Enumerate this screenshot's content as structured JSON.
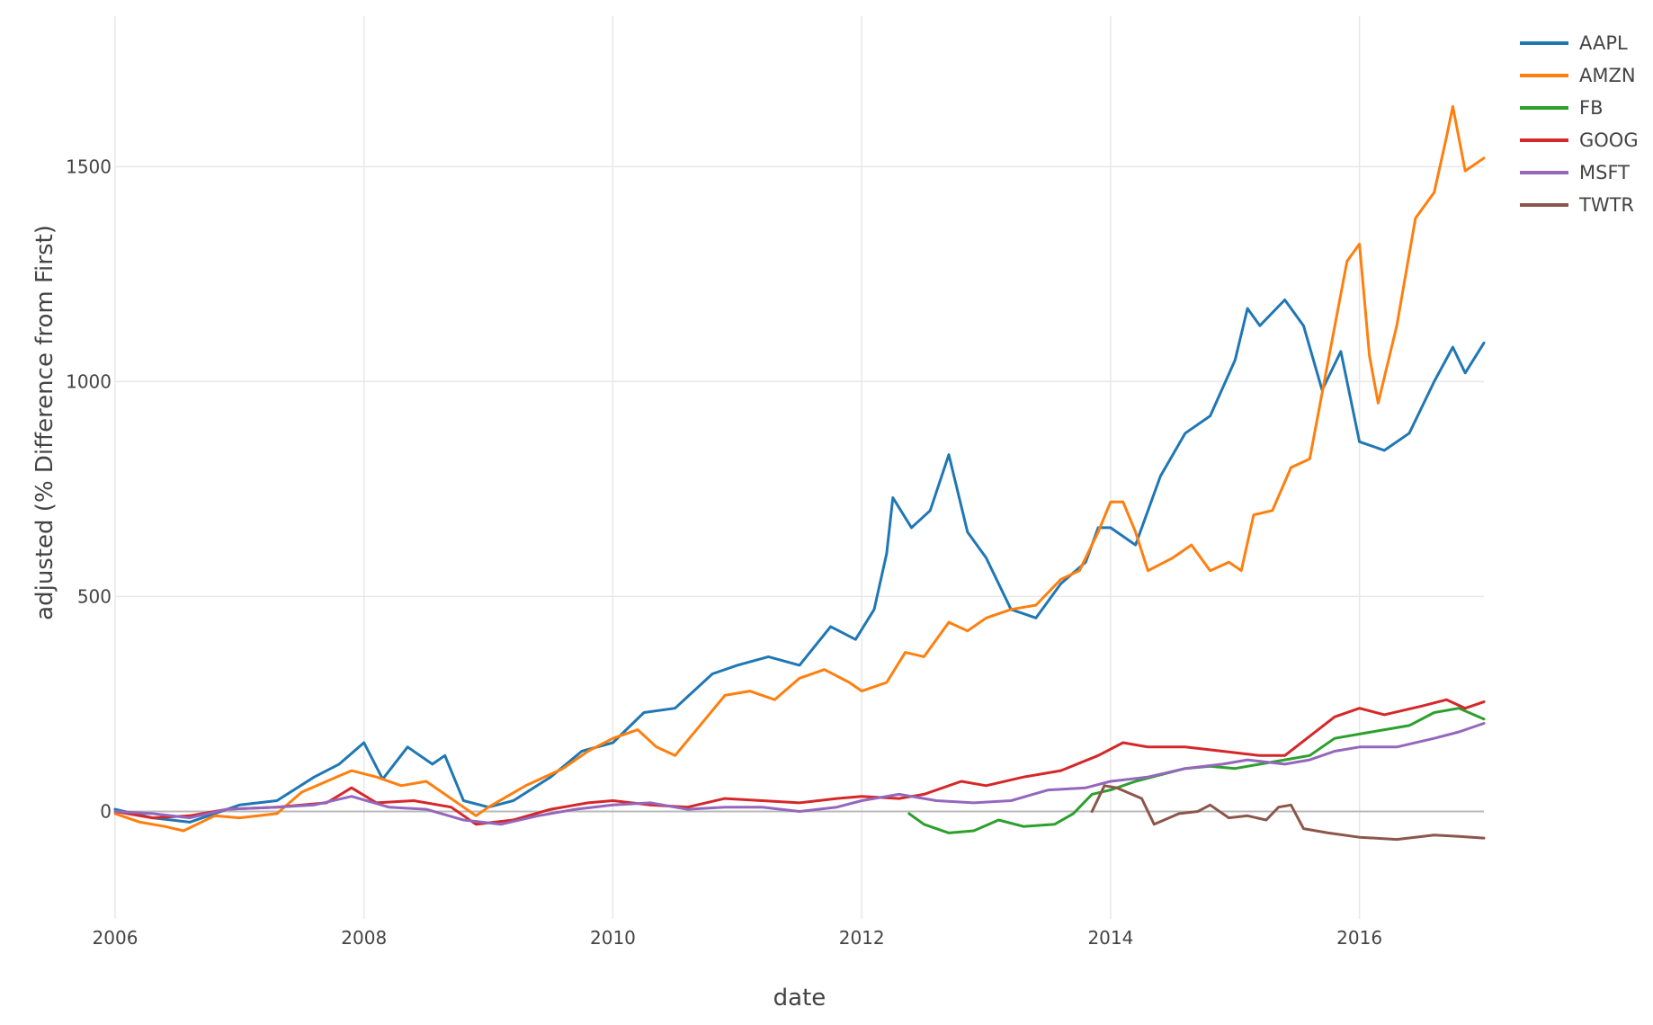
{
  "chart_data": {
    "type": "line",
    "xlabel": "date",
    "ylabel": "adjusted (% Difference from First)",
    "xlim": [
      2006,
      2017
    ],
    "ylim": [
      -250,
      1850
    ],
    "x_ticks": [
      2006,
      2008,
      2010,
      2012,
      2014,
      2016
    ],
    "x_tick_labels": [
      "2006",
      "2008",
      "2010",
      "2012",
      "2014",
      "2016"
    ],
    "y_ticks": [
      0,
      500,
      1000,
      1500
    ],
    "y_tick_labels": [
      "0",
      "500",
      "1000",
      "1500"
    ],
    "grid": true,
    "legend_position": "top-right",
    "series": [
      {
        "name": "AAPL",
        "color": "#1f77b4",
        "points": [
          [
            2006.0,
            5
          ],
          [
            2006.3,
            -15
          ],
          [
            2006.6,
            -25
          ],
          [
            2007.0,
            15
          ],
          [
            2007.3,
            25
          ],
          [
            2007.6,
            80
          ],
          [
            2007.8,
            110
          ],
          [
            2008.0,
            160
          ],
          [
            2008.15,
            75
          ],
          [
            2008.35,
            150
          ],
          [
            2008.55,
            110
          ],
          [
            2008.65,
            130
          ],
          [
            2008.8,
            25
          ],
          [
            2009.0,
            10
          ],
          [
            2009.2,
            25
          ],
          [
            2009.5,
            80
          ],
          [
            2009.75,
            140
          ],
          [
            2010.0,
            160
          ],
          [
            2010.25,
            230
          ],
          [
            2010.5,
            240
          ],
          [
            2010.8,
            320
          ],
          [
            2011.0,
            340
          ],
          [
            2011.25,
            360
          ],
          [
            2011.5,
            340
          ],
          [
            2011.75,
            430
          ],
          [
            2011.95,
            400
          ],
          [
            2012.1,
            470
          ],
          [
            2012.2,
            600
          ],
          [
            2012.25,
            730
          ],
          [
            2012.4,
            660
          ],
          [
            2012.55,
            700
          ],
          [
            2012.7,
            830
          ],
          [
            2012.85,
            650
          ],
          [
            2013.0,
            590
          ],
          [
            2013.2,
            470
          ],
          [
            2013.4,
            450
          ],
          [
            2013.6,
            530
          ],
          [
            2013.8,
            580
          ],
          [
            2013.9,
            660
          ],
          [
            2014.0,
            660
          ],
          [
            2014.2,
            620
          ],
          [
            2014.4,
            780
          ],
          [
            2014.6,
            880
          ],
          [
            2014.8,
            920
          ],
          [
            2015.0,
            1050
          ],
          [
            2015.1,
            1170
          ],
          [
            2015.2,
            1130
          ],
          [
            2015.4,
            1190
          ],
          [
            2015.55,
            1130
          ],
          [
            2015.7,
            980
          ],
          [
            2015.85,
            1070
          ],
          [
            2016.0,
            860
          ],
          [
            2016.2,
            840
          ],
          [
            2016.4,
            880
          ],
          [
            2016.6,
            1000
          ],
          [
            2016.75,
            1080
          ],
          [
            2016.85,
            1020
          ],
          [
            2017.0,
            1090
          ]
        ]
      },
      {
        "name": "AMZN",
        "color": "#ff7f0e",
        "points": [
          [
            2006.0,
            -5
          ],
          [
            2006.2,
            -25
          ],
          [
            2006.4,
            -35
          ],
          [
            2006.55,
            -45
          ],
          [
            2006.8,
            -10
          ],
          [
            2007.0,
            -15
          ],
          [
            2007.3,
            -5
          ],
          [
            2007.5,
            45
          ],
          [
            2007.7,
            70
          ],
          [
            2007.9,
            95
          ],
          [
            2008.1,
            80
          ],
          [
            2008.3,
            60
          ],
          [
            2008.5,
            70
          ],
          [
            2008.7,
            30
          ],
          [
            2008.9,
            -10
          ],
          [
            2009.0,
            10
          ],
          [
            2009.3,
            60
          ],
          [
            2009.6,
            100
          ],
          [
            2009.8,
            140
          ],
          [
            2010.0,
            170
          ],
          [
            2010.2,
            190
          ],
          [
            2010.35,
            150
          ],
          [
            2010.5,
            130
          ],
          [
            2010.7,
            200
          ],
          [
            2010.9,
            270
          ],
          [
            2011.1,
            280
          ],
          [
            2011.3,
            260
          ],
          [
            2011.5,
            310
          ],
          [
            2011.7,
            330
          ],
          [
            2011.9,
            300
          ],
          [
            2012.0,
            280
          ],
          [
            2012.2,
            300
          ],
          [
            2012.35,
            370
          ],
          [
            2012.5,
            360
          ],
          [
            2012.7,
            440
          ],
          [
            2012.85,
            420
          ],
          [
            2013.0,
            450
          ],
          [
            2013.2,
            470
          ],
          [
            2013.4,
            480
          ],
          [
            2013.6,
            540
          ],
          [
            2013.75,
            560
          ],
          [
            2013.9,
            650
          ],
          [
            2014.0,
            720
          ],
          [
            2014.1,
            720
          ],
          [
            2014.2,
            650
          ],
          [
            2014.3,
            560
          ],
          [
            2014.5,
            590
          ],
          [
            2014.65,
            620
          ],
          [
            2014.8,
            560
          ],
          [
            2014.95,
            580
          ],
          [
            2015.05,
            560
          ],
          [
            2015.15,
            690
          ],
          [
            2015.3,
            700
          ],
          [
            2015.45,
            800
          ],
          [
            2015.6,
            820
          ],
          [
            2015.75,
            1050
          ],
          [
            2015.9,
            1280
          ],
          [
            2016.0,
            1320
          ],
          [
            2016.08,
            1060
          ],
          [
            2016.15,
            950
          ],
          [
            2016.3,
            1130
          ],
          [
            2016.45,
            1380
          ],
          [
            2016.6,
            1440
          ],
          [
            2016.7,
            1570
          ],
          [
            2016.75,
            1640
          ],
          [
            2016.85,
            1490
          ],
          [
            2017.0,
            1520
          ]
        ]
      },
      {
        "name": "FB",
        "color": "#2ca02c",
        "points": [
          [
            2012.38,
            -5
          ],
          [
            2012.5,
            -30
          ],
          [
            2012.7,
            -50
          ],
          [
            2012.9,
            -45
          ],
          [
            2013.1,
            -20
          ],
          [
            2013.3,
            -35
          ],
          [
            2013.55,
            -30
          ],
          [
            2013.7,
            -5
          ],
          [
            2013.85,
            40
          ],
          [
            2014.0,
            50
          ],
          [
            2014.2,
            70
          ],
          [
            2014.4,
            85
          ],
          [
            2014.6,
            100
          ],
          [
            2014.8,
            105
          ],
          [
            2015.0,
            100
          ],
          [
            2015.2,
            110
          ],
          [
            2015.4,
            120
          ],
          [
            2015.6,
            130
          ],
          [
            2015.8,
            170
          ],
          [
            2016.0,
            180
          ],
          [
            2016.2,
            190
          ],
          [
            2016.4,
            200
          ],
          [
            2016.6,
            230
          ],
          [
            2016.8,
            240
          ],
          [
            2017.0,
            215
          ]
        ]
      },
      {
        "name": "GOOG",
        "color": "#d62728",
        "points": [
          [
            2006.0,
            0
          ],
          [
            2006.3,
            -15
          ],
          [
            2006.6,
            -10
          ],
          [
            2006.9,
            5
          ],
          [
            2007.3,
            10
          ],
          [
            2007.7,
            20
          ],
          [
            2007.9,
            55
          ],
          [
            2008.1,
            20
          ],
          [
            2008.4,
            25
          ],
          [
            2008.7,
            10
          ],
          [
            2008.9,
            -30
          ],
          [
            2009.2,
            -20
          ],
          [
            2009.5,
            5
          ],
          [
            2009.8,
            20
          ],
          [
            2010.0,
            25
          ],
          [
            2010.3,
            15
          ],
          [
            2010.6,
            10
          ],
          [
            2010.9,
            30
          ],
          [
            2011.2,
            25
          ],
          [
            2011.5,
            20
          ],
          [
            2011.8,
            30
          ],
          [
            2012.0,
            35
          ],
          [
            2012.3,
            30
          ],
          [
            2012.5,
            40
          ],
          [
            2012.8,
            70
          ],
          [
            2013.0,
            60
          ],
          [
            2013.3,
            80
          ],
          [
            2013.6,
            95
          ],
          [
            2013.9,
            130
          ],
          [
            2014.1,
            160
          ],
          [
            2014.3,
            150
          ],
          [
            2014.6,
            150
          ],
          [
            2014.9,
            140
          ],
          [
            2015.2,
            130
          ],
          [
            2015.4,
            130
          ],
          [
            2015.6,
            175
          ],
          [
            2015.8,
            220
          ],
          [
            2016.0,
            240
          ],
          [
            2016.2,
            225
          ],
          [
            2016.5,
            245
          ],
          [
            2016.7,
            260
          ],
          [
            2016.85,
            240
          ],
          [
            2017.0,
            255
          ]
        ]
      },
      {
        "name": "MSFT",
        "color": "#9467bd",
        "points": [
          [
            2006.0,
            0
          ],
          [
            2006.3,
            -5
          ],
          [
            2006.6,
            -15
          ],
          [
            2006.9,
            5
          ],
          [
            2007.3,
            10
          ],
          [
            2007.6,
            15
          ],
          [
            2007.9,
            35
          ],
          [
            2008.2,
            10
          ],
          [
            2008.5,
            5
          ],
          [
            2008.8,
            -20
          ],
          [
            2009.1,
            -30
          ],
          [
            2009.4,
            -10
          ],
          [
            2009.7,
            5
          ],
          [
            2010.0,
            15
          ],
          [
            2010.3,
            20
          ],
          [
            2010.6,
            5
          ],
          [
            2010.9,
            10
          ],
          [
            2011.2,
            10
          ],
          [
            2011.5,
            0
          ],
          [
            2011.8,
            10
          ],
          [
            2012.0,
            25
          ],
          [
            2012.3,
            40
          ],
          [
            2012.6,
            25
          ],
          [
            2012.9,
            20
          ],
          [
            2013.2,
            25
          ],
          [
            2013.5,
            50
          ],
          [
            2013.8,
            55
          ],
          [
            2014.0,
            70
          ],
          [
            2014.3,
            80
          ],
          [
            2014.6,
            100
          ],
          [
            2014.9,
            110
          ],
          [
            2015.1,
            120
          ],
          [
            2015.4,
            110
          ],
          [
            2015.6,
            120
          ],
          [
            2015.8,
            140
          ],
          [
            2016.0,
            150
          ],
          [
            2016.3,
            150
          ],
          [
            2016.6,
            170
          ],
          [
            2016.8,
            185
          ],
          [
            2017.0,
            205
          ]
        ]
      },
      {
        "name": "TWTR",
        "color": "#8c564b",
        "points": [
          [
            2013.85,
            0
          ],
          [
            2013.95,
            60
          ],
          [
            2014.05,
            55
          ],
          [
            2014.25,
            30
          ],
          [
            2014.35,
            -30
          ],
          [
            2014.55,
            -5
          ],
          [
            2014.7,
            0
          ],
          [
            2014.8,
            15
          ],
          [
            2014.95,
            -15
          ],
          [
            2015.1,
            -10
          ],
          [
            2015.25,
            -20
          ],
          [
            2015.35,
            10
          ],
          [
            2015.45,
            15
          ],
          [
            2015.55,
            -40
          ],
          [
            2015.75,
            -50
          ],
          [
            2016.0,
            -60
          ],
          [
            2016.3,
            -65
          ],
          [
            2016.6,
            -55
          ],
          [
            2016.8,
            -58
          ],
          [
            2017.0,
            -62
          ]
        ]
      }
    ]
  }
}
